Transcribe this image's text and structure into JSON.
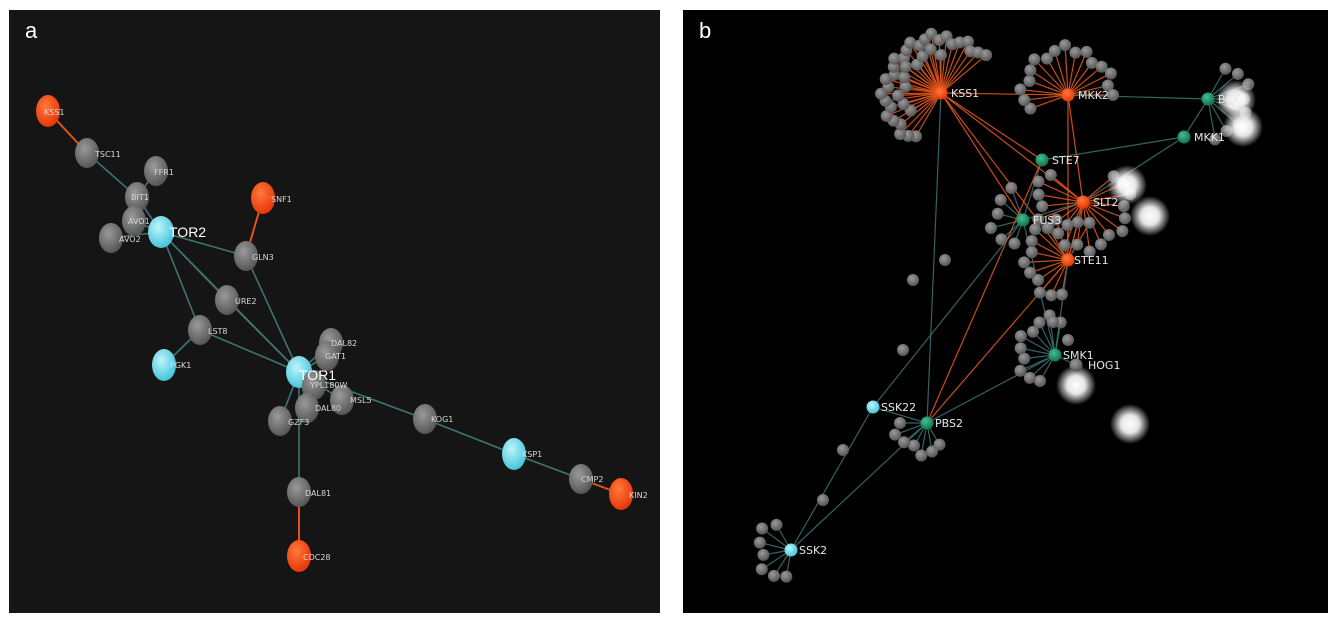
{
  "panels": [
    {
      "letter": "a"
    },
    {
      "letter": "b"
    }
  ],
  "colors": {
    "gray_node": "#7a7a7a",
    "cyan_node": "#5fd6e6",
    "red_node": "#ff4a14",
    "green_node": "#1f8a62",
    "teal_edge": "#3d7474",
    "orange_edge": "#e0541c",
    "glow": "#ffffff"
  },
  "network_a": {
    "labels": {
      "KSS1": "KSS1",
      "TSC11": "TSC11",
      "FFR1": "FFR1",
      "BIT1": "BIT1",
      "AVO1": "AVO1",
      "AVO2": "AVO2",
      "TOR2": "TOR2",
      "SNF1": "SNF1",
      "GLN3": "GLN3",
      "URE2": "URE2",
      "LST8": "LST8",
      "PGK1": "PGK1",
      "TOR1": "TOR1",
      "DAL82": "DAL82",
      "GAT1": "GAT1",
      "YPL180W": "YPL180W",
      "DAL80": "DAL80",
      "MSL5": "MSL5",
      "GZF3": "GZF3",
      "KOG1": "KOG1",
      "KSP1": "KSP1",
      "CMP2": "CMP2",
      "KIN2": "KIN2",
      "DAL81": "DAL81",
      "CDC28": "CDC28"
    }
  },
  "network_b": {
    "labels": {
      "KSS1": "KSS1",
      "MKK2": "MKK2",
      "BCK1": "BCK",
      "MKK1": "MKK1",
      "STE7": "STE7",
      "SLT2": "SLT2",
      "FUS3": "FUS3",
      "STE11": "STE11",
      "SMK1": "SMK1",
      "HOG1": "HOG1",
      "SSK22": "SSK22",
      "PBS2": "PBS2",
      "SSK2": "SSK2"
    }
  }
}
